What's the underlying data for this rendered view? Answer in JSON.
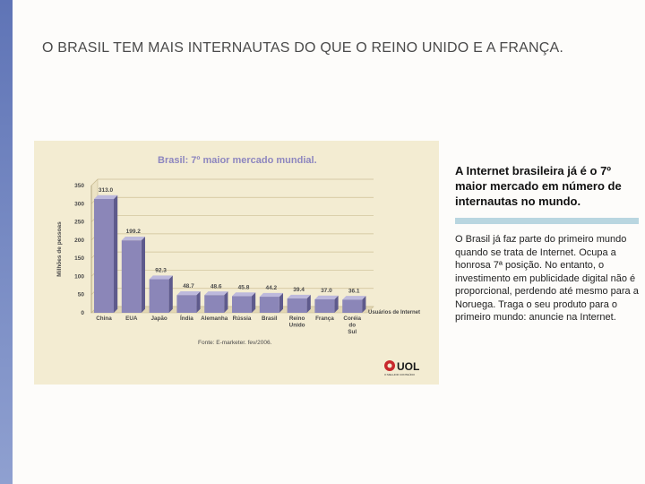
{
  "slide": {
    "title": "O BRASIL TEM MAIS INTERNAUTAS DO QUE O REINO UNIDO E A FRANÇA.",
    "side_heading": "A Internet brasileira já é o 7º maior mercado em número de internautas no mundo.",
    "side_body": "O Brasil já faz parte do primeiro mundo quando se trata de Internet. Ocupa a honrosa 7ª posição. No entanto, o investimento em publicidade digital não é proporcional, perdendo até mesmo para a Noruega. Traga o seu produto para o primeiro mundo: anuncie na Internet."
  },
  "chart_data": {
    "type": "bar",
    "title": "Brasil: 7º maior mercado mundial.",
    "ylabel": "Milhões de pessoas",
    "series_label": "Usuários de Internet",
    "source": "Fonte: E-marketer. fev/2006.",
    "categories": [
      "China",
      "EUA",
      "Japão",
      "Índia",
      "Alemanha",
      "Rússia",
      "Brasil",
      "Reino Unido",
      "França",
      "Coréia do Sul"
    ],
    "values": [
      313.0,
      199.2,
      92.3,
      48.7,
      48.6,
      45.8,
      44.2,
      39.4,
      37.0,
      36.1
    ],
    "value_labels": [
      "313.0",
      "199.2",
      "92.3",
      "48.7",
      "48.6",
      "45.8",
      "44.2",
      "39.4",
      "37.0",
      "36.1"
    ],
    "ylim": [
      0,
      350
    ],
    "yticks": [
      0,
      50,
      100,
      150,
      200,
      250,
      300,
      350
    ],
    "grid": true,
    "colors": {
      "bar": "#8b86b8",
      "bar_side": "#5e5a8c",
      "bar_top": "#bdb9dc",
      "title": "#8d86bf",
      "text": "#4a4a4a"
    }
  },
  "logo": {
    "text": "UOL",
    "tagline": "O MELHOR CONTEÚDO"
  }
}
